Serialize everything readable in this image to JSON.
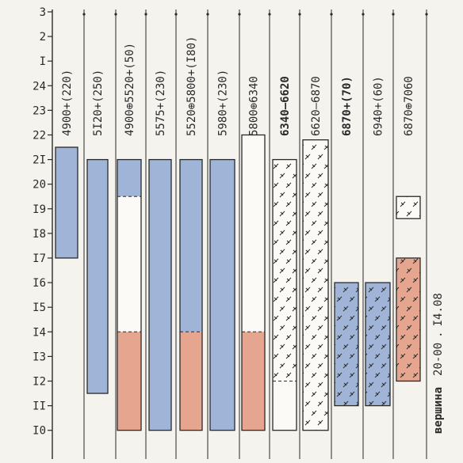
{
  "chart_data": {
    "type": "timeline",
    "y_tick_labels": [
      "3",
      "2",
      "I",
      "24",
      "23",
      "22",
      "2I",
      "20",
      "I9",
      "I8",
      "I7",
      "I6",
      "I5",
      "I4",
      "I3",
      "I2",
      "II",
      "I0"
    ],
    "columns": [
      {
        "label": "4900+(220)",
        "bold": false,
        "segments": [
          {
            "from": 21.5,
            "to": 17.0,
            "fill": "blue"
          }
        ]
      },
      {
        "label": "5I20+(250)",
        "bold": false,
        "segments": [
          {
            "from": 21.0,
            "to": 11.5,
            "fill": "blue"
          }
        ]
      },
      {
        "label": "4900⊕5520+(50)",
        "bold": false,
        "segments": [
          {
            "from": 21.0,
            "to": 19.5,
            "fill": "blue"
          },
          {
            "from": 19.5,
            "to": 14.0,
            "fill": "white",
            "dashed_top": true
          },
          {
            "from": 14.0,
            "to": 10.0,
            "fill": "red",
            "dashed_top": true
          }
        ]
      },
      {
        "label": "5575+(230)",
        "bold": false,
        "segments": [
          {
            "from": 21.0,
            "to": 10.0,
            "fill": "blue"
          }
        ]
      },
      {
        "label": "5520⊕5800+(I80)",
        "bold": false,
        "segments": [
          {
            "from": 21.0,
            "to": 14.0,
            "fill": "blue"
          },
          {
            "from": 14.0,
            "to": 10.0,
            "fill": "red",
            "dashed_top": true
          }
        ]
      },
      {
        "label": "5980+(230)",
        "bold": false,
        "segments": [
          {
            "from": 21.0,
            "to": 10.0,
            "fill": "blue"
          }
        ]
      },
      {
        "label": "5800⊕6340",
        "bold": false,
        "segments": [
          {
            "from": 22.0,
            "to": 14.0,
            "fill": "white"
          },
          {
            "from": 14.0,
            "to": 10.0,
            "fill": "red",
            "dashed_top": true
          }
        ]
      },
      {
        "label": "6340–6620",
        "bold": true,
        "segments": [
          {
            "from": 21.0,
            "to": 12.0,
            "fill": "white",
            "hatch": true
          },
          {
            "from": 12.0,
            "to": 10.0,
            "fill": "white",
            "dashed_top": true
          }
        ]
      },
      {
        "label": "6620–6870",
        "bold": false,
        "segments": [
          {
            "from": 21.8,
            "to": 10.0,
            "fill": "white",
            "hatch": true
          }
        ]
      },
      {
        "label": "6870+(70)",
        "bold": true,
        "segments": [
          {
            "from": 16.0,
            "to": 11.0,
            "fill": "blue",
            "hatch": true
          }
        ]
      },
      {
        "label": "6940+(60)",
        "bold": false,
        "segments": [
          {
            "from": 16.0,
            "to": 11.0,
            "fill": "blue",
            "hatch": true
          }
        ]
      },
      {
        "label": "6870⊕7060",
        "bold": false,
        "segments": [
          {
            "from": 19.5,
            "to": 18.6,
            "fill": "white",
            "hatch": true
          },
          {
            "from": 17.0,
            "to": 12.0,
            "fill": "red",
            "hatch": true
          }
        ]
      }
    ],
    "annotation": {
      "word": "вершина",
      "time": "20-00",
      "date": "I4.08"
    }
  },
  "colors": {
    "blue": "#9fb4d6",
    "red": "#e6a58e",
    "white": "#fbfaf6",
    "ink": "#2a2a2a"
  }
}
